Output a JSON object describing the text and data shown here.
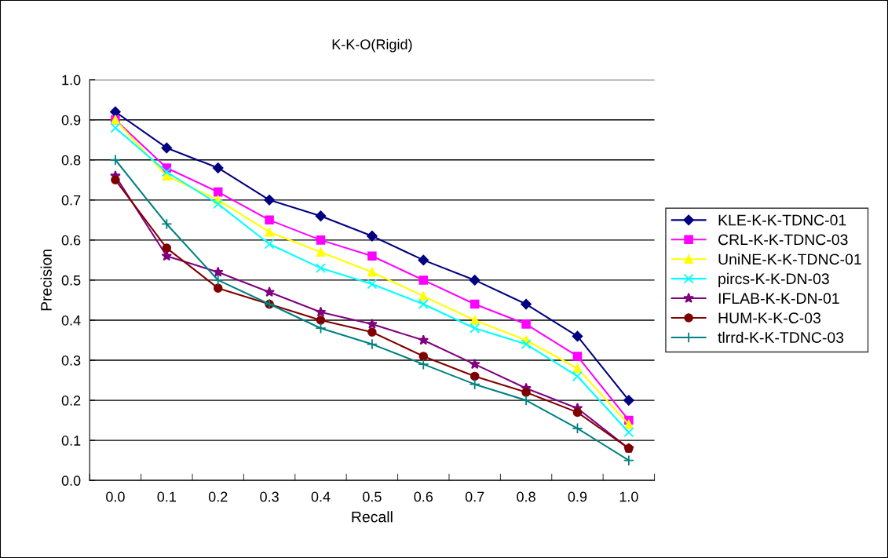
{
  "chart_data": {
    "type": "line",
    "title": "K-K-O(Rigid)",
    "xlabel": "Recall",
    "ylabel": "Precision",
    "categories": [
      "0.0",
      "0.1",
      "0.2",
      "0.3",
      "0.4",
      "0.5",
      "0.6",
      "0.7",
      "0.8",
      "0.9",
      "1.0"
    ],
    "ylim": [
      0,
      1
    ],
    "yticks": [
      {
        "value": 0,
        "label": "0.0"
      },
      {
        "value": 0.1,
        "label": "0.1"
      },
      {
        "value": 0.2,
        "label": "0.2"
      },
      {
        "value": 0.3,
        "label": "0.3"
      },
      {
        "value": 0.4,
        "label": "0.4"
      },
      {
        "value": 0.5,
        "label": "0.5"
      },
      {
        "value": 0.6,
        "label": "0.6"
      },
      {
        "value": 0.7,
        "label": "0.7"
      },
      {
        "value": 0.8,
        "label": "0.8"
      },
      {
        "value": 0.9,
        "label": "0.9"
      },
      {
        "value": 1,
        "label": "1.0"
      }
    ],
    "grid": "y",
    "legend": "right",
    "line_style": "solid",
    "series": [
      {
        "name": "KLE-K-K-TDNC-01",
        "color": "#000080",
        "marker": "diamond",
        "values": [
          0.92,
          0.83,
          0.78,
          0.7,
          0.66,
          0.61,
          0.55,
          0.5,
          0.44,
          0.36,
          0.2
        ]
      },
      {
        "name": "CRL-K-K-TDNC-03",
        "color": "#ff00ff",
        "marker": "square",
        "values": [
          0.9,
          0.78,
          0.72,
          0.65,
          0.6,
          0.56,
          0.5,
          0.44,
          0.39,
          0.31,
          0.15
        ]
      },
      {
        "name": "UniNE-K-K-TDNC-01",
        "color": "#ffff00",
        "marker": "triangle",
        "values": [
          0.9,
          0.76,
          0.7,
          0.62,
          0.57,
          0.52,
          0.46,
          0.4,
          0.35,
          0.28,
          0.14
        ]
      },
      {
        "name": "pircs-K-K-DN-03",
        "color": "#00ffff",
        "marker": "cross",
        "values": [
          0.88,
          0.77,
          0.69,
          0.59,
          0.53,
          0.49,
          0.44,
          0.38,
          0.34,
          0.26,
          0.12
        ]
      },
      {
        "name": "IFLAB-K-K-DN-01",
        "color": "#800080",
        "marker": "star",
        "values": [
          0.76,
          0.56,
          0.52,
          0.47,
          0.42,
          0.39,
          0.35,
          0.29,
          0.23,
          0.18,
          0.08
        ]
      },
      {
        "name": "HUM-K-K-C-03",
        "color": "#800000",
        "marker": "circle",
        "values": [
          0.75,
          0.58,
          0.48,
          0.44,
          0.4,
          0.37,
          0.31,
          0.26,
          0.22,
          0.17,
          0.08
        ]
      },
      {
        "name": "tlrrd-K-K-TDNC-03",
        "color": "#008080",
        "marker": "plus",
        "values": [
          0.8,
          0.64,
          0.5,
          0.44,
          0.38,
          0.34,
          0.29,
          0.24,
          0.2,
          0.13,
          0.05
        ]
      }
    ]
  }
}
